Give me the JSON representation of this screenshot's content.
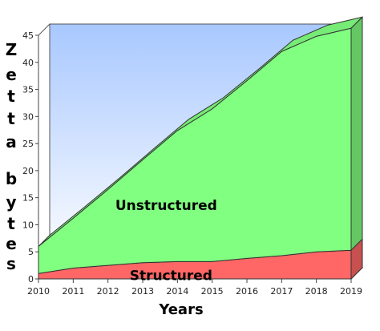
{
  "chart_data": {
    "type": "area",
    "stacked": true,
    "three_d": true,
    "x": [
      2010,
      2011,
      2012,
      2013,
      2014,
      2015,
      2016,
      2017,
      2018,
      2019
    ],
    "x_tick_labels": [
      "2010",
      "2011",
      "2012",
      "2013",
      "2014",
      "2015",
      "2016",
      "2017",
      "2018",
      "2019"
    ],
    "y_tick_labels": [
      "0",
      "5",
      "10",
      "15",
      "20",
      "25",
      "30",
      "35",
      "40",
      "45"
    ],
    "ylim": [
      0,
      45
    ],
    "xlabel": "Years",
    "ylabel_letters": [
      "Z",
      "e",
      "t",
      "t",
      "a",
      "b",
      "y",
      "t",
      "e",
      "s"
    ],
    "grid": false,
    "legend": "none",
    "series": [
      {
        "name": "Structured",
        "values": [
          1.0,
          2.0,
          2.5,
          3.0,
          3.2,
          3.2,
          3.8,
          4.3,
          5.0,
          5.3
        ],
        "color": "#ff6666"
      },
      {
        "name": "Unstructured",
        "values": [
          5.0,
          9.2,
          14.0,
          19.0,
          24.2,
          28.2,
          32.8,
          37.7,
          39.8,
          41.0
        ],
        "color": "#80ff80"
      }
    ],
    "background_gradient": [
      "#a8c8ff",
      "#ffffff"
    ]
  }
}
